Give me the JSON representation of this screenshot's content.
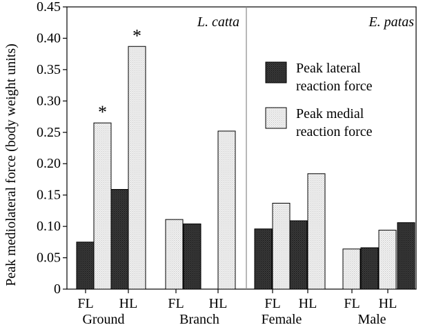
{
  "chart_data": {
    "type": "bar",
    "ylabel": "Peak mediolateral force (body weight units)",
    "ylim": [
      0,
      0.45
    ],
    "yticks": [
      "0",
      "0.05",
      "0.10",
      "0.15",
      "0.20",
      "0.25",
      "0.30",
      "0.35",
      "0.40",
      "0.45"
    ],
    "grid": false,
    "legend_position": "top-right",
    "series": [
      {
        "name": "Peak lateral reaction force",
        "color": "#2b2b2b"
      },
      {
        "name": "Peak medial reaction force",
        "color": "#eeeeee"
      }
    ],
    "panels": [
      {
        "title": "L. catta",
        "groups": [
          {
            "name": "Ground",
            "limbs": [
              {
                "label": "FL",
                "lateral": 0.075,
                "medial": 0.265,
                "medial_annotation": "*"
              },
              {
                "label": "HL",
                "lateral": 0.159,
                "medial": 0.387,
                "medial_annotation": "*"
              }
            ]
          },
          {
            "name": "Branch",
            "limbs": [
              {
                "label": "FL",
                "medial": 0.111,
                "lateral": 0.104
              },
              {
                "label": "HL",
                "medial": 0.252
              }
            ]
          }
        ]
      },
      {
        "title": "E. patas",
        "groups": [
          {
            "name": "Female",
            "limbs": [
              {
                "label": "FL",
                "lateral": 0.096,
                "medial": 0.137
              },
              {
                "label": "HL",
                "lateral": 0.109,
                "medial": 0.184
              }
            ]
          },
          {
            "name": "Male",
            "limbs": [
              {
                "label": "FL",
                "medial": 0.064,
                "lateral": 0.066
              },
              {
                "label": "HL",
                "medial": 0.094,
                "lateral": 0.106
              }
            ]
          }
        ]
      }
    ]
  }
}
